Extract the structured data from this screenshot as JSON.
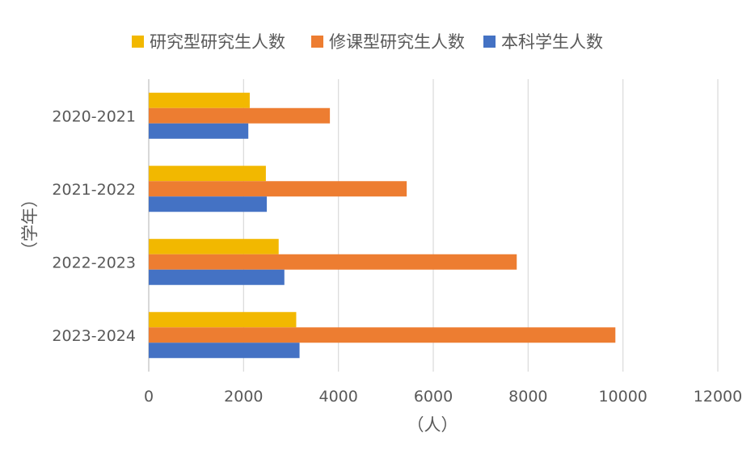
{
  "chart_data": {
    "type": "bar",
    "orientation": "horizontal",
    "categories": [
      "2020-2021",
      "2021-2022",
      "2022-2023",
      "2023-2024"
    ],
    "series": [
      {
        "name": "研究型研究生人数",
        "color": "#F2B800",
        "values": [
          2130,
          2470,
          2740,
          3110
        ]
      },
      {
        "name": "修课型研究生人数",
        "color": "#ED7D31",
        "values": [
          3820,
          5440,
          7760,
          9840
        ]
      },
      {
        "name": "本科学生人数",
        "color": "#4472C4",
        "values": [
          2100,
          2490,
          2860,
          3180
        ]
      }
    ],
    "xlabel": "（人）",
    "ylabel": "（学年）",
    "xlim": [
      0,
      12000
    ],
    "xticks": [
      "0",
      "2000",
      "4000",
      "6000",
      "8000",
      "10000",
      "12000"
    ],
    "grid": "vertical",
    "legend_position": "top"
  }
}
